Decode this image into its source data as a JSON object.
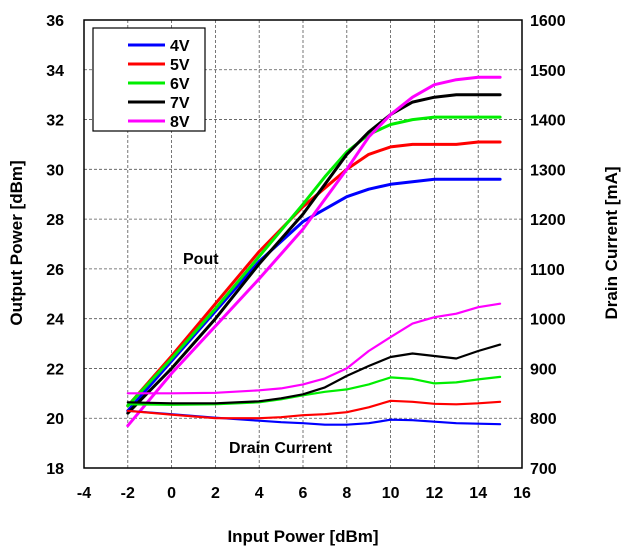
{
  "chart_data": {
    "type": "line",
    "title": "",
    "xlabel": "Input Power  [dBm]",
    "ylabel": "Output Power  [dBm]",
    "y2label": "Drain Current  [mA]",
    "xlim": [
      -4,
      16
    ],
    "ylim": [
      18,
      36
    ],
    "y2lim": [
      700,
      1600
    ],
    "xticks": [
      -4,
      -2,
      0,
      2,
      4,
      6,
      8,
      10,
      12,
      14,
      16
    ],
    "yticks": [
      18,
      20,
      22,
      24,
      26,
      28,
      30,
      32,
      34,
      36
    ],
    "y2ticks": [
      700,
      800,
      900,
      1000,
      1100,
      1200,
      1300,
      1400,
      1500,
      1600
    ],
    "grid": true,
    "legend_position": "top-left",
    "annotations": [
      {
        "text": "Pout",
        "x": 1.5,
        "y": 25.5
      },
      {
        "text": "Drain Current",
        "x": 7.5,
        "y": 19.0
      }
    ],
    "series": [
      {
        "name": "4V",
        "color": "#0000ff",
        "axis": "left",
        "group": "pout",
        "x": [
          -2,
          0,
          2,
          4,
          6,
          8,
          9,
          10,
          11,
          12,
          13,
          14,
          15
        ],
        "values": [
          20.3,
          22.3,
          24.3,
          26.3,
          27.9,
          28.9,
          29.2,
          29.4,
          29.5,
          29.6,
          29.6,
          29.6,
          29.6
        ]
      },
      {
        "name": "5V",
        "color": "#ff0000",
        "axis": "left",
        "group": "pout",
        "x": [
          -2,
          0,
          2,
          4,
          6,
          8,
          9,
          10,
          11,
          12,
          13,
          14,
          15
        ],
        "values": [
          20.5,
          22.5,
          24.6,
          26.7,
          28.5,
          30.0,
          30.6,
          30.9,
          31.0,
          31.0,
          31.0,
          31.1,
          31.1
        ]
      },
      {
        "name": "6V",
        "color": "#00ee00",
        "axis": "left",
        "group": "pout",
        "x": [
          -2,
          0,
          2,
          4,
          6,
          7,
          8,
          9,
          10,
          11,
          12,
          13,
          14,
          15
        ],
        "values": [
          20.5,
          22.4,
          24.4,
          26.5,
          28.6,
          29.7,
          30.7,
          31.4,
          31.8,
          32.0,
          32.1,
          32.1,
          32.1,
          32.1
        ]
      },
      {
        "name": "7V",
        "color": "#000000",
        "axis": "left",
        "group": "pout",
        "x": [
          -2,
          0,
          2,
          4,
          6,
          7,
          8,
          9,
          10,
          11,
          12,
          13,
          14,
          15
        ],
        "values": [
          20.2,
          22.0,
          24.0,
          26.2,
          28.2,
          29.4,
          30.6,
          31.5,
          32.2,
          32.7,
          32.9,
          33.0,
          33.0,
          33.0
        ]
      },
      {
        "name": "8V",
        "color": "#ff00ff",
        "axis": "left",
        "group": "pout",
        "x": [
          -2,
          0,
          2,
          4,
          6,
          8,
          9,
          10,
          11,
          12,
          13,
          14,
          15
        ],
        "values": [
          19.7,
          21.8,
          23.7,
          25.6,
          27.6,
          30.0,
          31.3,
          32.2,
          32.9,
          33.4,
          33.6,
          33.7,
          33.7
        ]
      },
      {
        "name": "4V",
        "color": "#0000ff",
        "axis": "right",
        "group": "drain",
        "x": [
          -2,
          0,
          2,
          4,
          5,
          6,
          7,
          8,
          9,
          10,
          11,
          12,
          13,
          14,
          15
        ],
        "values": [
          815,
          808,
          801,
          795,
          792,
          790,
          787,
          787,
          790,
          797,
          796,
          793,
          790,
          789,
          788
        ]
      },
      {
        "name": "5V",
        "color": "#ff0000",
        "axis": "right",
        "group": "drain",
        "x": [
          -2,
          0,
          2,
          4,
          5,
          6,
          7,
          8,
          9,
          10,
          11,
          12,
          13,
          14,
          15
        ],
        "values": [
          815,
          807,
          800,
          800,
          802,
          806,
          808,
          812,
          822,
          835,
          833,
          829,
          828,
          830,
          833
        ]
      },
      {
        "name": "6V",
        "color": "#00ee00",
        "axis": "right",
        "group": "drain",
        "x": [
          -2,
          0,
          2,
          4,
          5,
          6,
          7,
          8,
          9,
          10,
          11,
          12,
          13,
          14,
          15
        ],
        "values": [
          828,
          827,
          828,
          832,
          838,
          846,
          853,
          858,
          868,
          882,
          879,
          870,
          872,
          878,
          883
        ]
      },
      {
        "name": "7V",
        "color": "#000000",
        "axis": "right",
        "group": "drain",
        "x": [
          -2,
          0,
          2,
          4,
          5,
          6,
          7,
          8,
          9,
          10,
          11,
          12,
          13,
          14,
          15
        ],
        "values": [
          832,
          830,
          830,
          834,
          840,
          848,
          862,
          885,
          905,
          923,
          930,
          925,
          920,
          935,
          948
        ]
      },
      {
        "name": "8V",
        "color": "#ff00ff",
        "axis": "right",
        "group": "drain",
        "x": [
          -2,
          0,
          2,
          4,
          5,
          6,
          7,
          8,
          9,
          10,
          11,
          12,
          13,
          14,
          15
        ],
        "values": [
          850,
          850,
          851,
          856,
          860,
          868,
          880,
          900,
          935,
          963,
          990,
          1003,
          1010,
          1023,
          1030
        ]
      }
    ]
  }
}
